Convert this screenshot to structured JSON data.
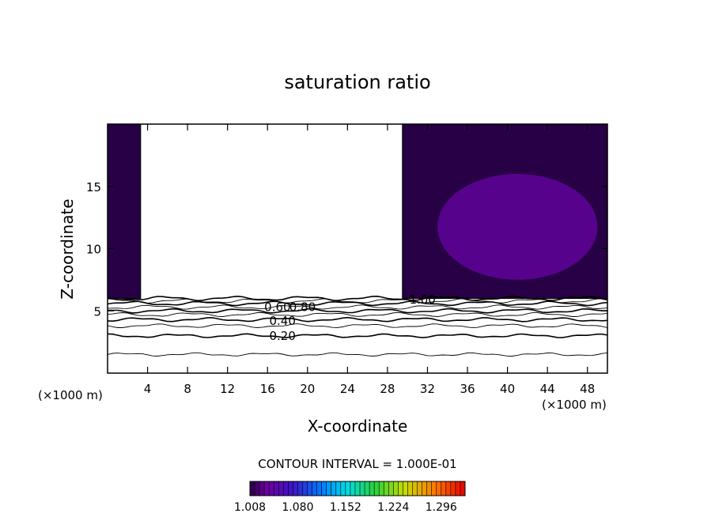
{
  "chart_data": {
    "type": "heatmap",
    "title": "saturation ratio",
    "xlabel": "X-coordinate",
    "ylabel": "Z-coordinate",
    "x_unit_left": "(×1000 m)",
    "x_unit_right": "(×1000 m)",
    "xlim": [
      0,
      50
    ],
    "ylim": [
      0,
      20
    ],
    "x_ticks": [
      4,
      8,
      12,
      16,
      20,
      24,
      28,
      32,
      36,
      40,
      44,
      48
    ],
    "x_tick_labels": [
      "4",
      "8",
      "12",
      "16",
      "20",
      "24",
      "28",
      "32",
      "36",
      "40",
      "44",
      "48"
    ],
    "y_ticks": [
      5,
      10,
      15
    ],
    "y_tick_labels": [
      "5",
      "10",
      "15"
    ],
    "contour_interval_label": "CONTOUR INTERVAL = 1.000E-01",
    "contour_labels": [
      {
        "text": "0.20",
        "x": 17.5,
        "y": 3.0
      },
      {
        "text": "0.40",
        "x": 17.5,
        "y": 4.2
      },
      {
        "text": "0.60",
        "x": 17.0,
        "y": 5.3
      },
      {
        "text": "0.80",
        "x": 19.5,
        "y": 5.3
      },
      {
        "text": "1.00",
        "x": 31.5,
        "y": 5.9
      }
    ],
    "contour_levels": [
      {
        "level": 0.1,
        "z": 1.5
      },
      {
        "level": 0.2,
        "z": 3.0
      },
      {
        "level": 0.3,
        "z": 3.8
      },
      {
        "level": 0.4,
        "z": 4.3
      },
      {
        "level": 0.5,
        "z": 4.7
      },
      {
        "level": 0.6,
        "z": 5.0
      },
      {
        "level": 0.7,
        "z": 5.3
      },
      {
        "level": 0.8,
        "z": 5.6
      },
      {
        "level": 0.9,
        "z": 5.8
      },
      {
        "level": 1.0,
        "z": 6.0
      }
    ],
    "supersaturated_regions": [
      {
        "x_range": [
          0,
          3.3
        ],
        "z_range": [
          6.0,
          20
        ],
        "value": 1.008
      },
      {
        "x_range": [
          29.5,
          50
        ],
        "z_range": [
          6.0,
          20
        ],
        "value": 1.008
      },
      {
        "x_range": [
          33,
          49
        ],
        "z_range": [
          7.5,
          16
        ],
        "value": 1.04
      }
    ],
    "colorbar": {
      "min": 1.008,
      "max": 1.332,
      "tick_labels": [
        "1.008",
        "1.080",
        "1.152",
        "1.224",
        "1.296"
      ]
    },
    "grid": false,
    "legend": "colorbar-bottom"
  }
}
